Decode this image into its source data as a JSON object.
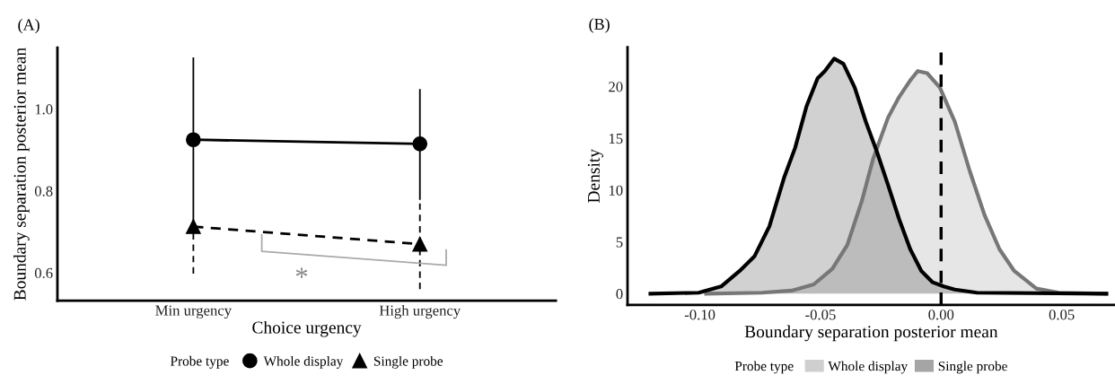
{
  "chart_data": [
    {
      "type": "line",
      "title": "(A)",
      "xlabel": "Choice urgency",
      "ylabel": "Boundary separation posterior mean",
      "categories": [
        "Min urgency",
        "High urgency"
      ],
      "series": [
        {
          "name": "Whole display",
          "color": "#000000",
          "values": [
            0.925,
            0.915
          ],
          "errors": [
            [
              0.717,
              1.124
            ],
            [
              0.78,
              1.047
            ]
          ],
          "marker": "circle",
          "line_style": "solid"
        },
        {
          "name": "Single probe",
          "color": "#000000",
          "values": [
            0.713,
            0.67
          ],
          "errors": [
            [
              0.598,
              0.717
            ],
            [
              0.56,
              0.78
            ]
          ],
          "marker": "triangle",
          "line_style": "dashed"
        }
      ],
      "ylim": [
        0.532,
        1.15
      ],
      "yticks": [
        {
          "value": 0.6,
          "label": "0.6"
        },
        {
          "value": 0.8,
          "label": "0.8"
        },
        {
          "value": 1.0,
          "label": "1.0"
        }
      ],
      "annotations": [
        "*"
      ],
      "legend": "bottom",
      "legend_title": "Probe type",
      "grid": false
    },
    {
      "type": "area",
      "title": "(B)",
      "xlabel": "Boundary separation posterior mean",
      "ylabel": "Density",
      "series": [
        {
          "name": "Whole display",
          "color": "#777777",
          "x": [
            -0.0974,
            -0.0743,
            -0.062,
            -0.0528,
            -0.0451,
            -0.0389,
            -0.0328,
            -0.0282,
            -0.022,
            -0.0174,
            -0.0128,
            -0.0097,
            -0.0058,
            -0.0005,
            0.0057,
            0.0118,
            0.018,
            0.0242,
            0.0303,
            0.0395,
            0.0488,
            0.0685
          ],
          "values": [
            0,
            0.1,
            0.3,
            0.9,
            2.4,
            4.7,
            9.0,
            13.0,
            17.0,
            19.0,
            20.6,
            21.5,
            21.3,
            19.9,
            16.6,
            11.9,
            7.6,
            4.3,
            2.2,
            0.5,
            0.1,
            0
          ]
        },
        {
          "name": "Single probe",
          "color": "#000000",
          "x": [
            -0.1205,
            -0.1005,
            -0.0912,
            -0.0835,
            -0.0774,
            -0.0712,
            -0.0651,
            -0.0605,
            -0.0558,
            -0.0512,
            -0.0482,
            -0.0443,
            -0.0405,
            -0.0358,
            -0.0312,
            -0.0266,
            -0.022,
            -0.0174,
            -0.0128,
            -0.0082,
            -0.0035,
            0.0011,
            0.0057,
            0.0149,
            0.0685
          ],
          "values": [
            0,
            0.1,
            0.7,
            2.2,
            3.6,
            6.5,
            11.2,
            14.1,
            18.1,
            20.8,
            21.5,
            22.7,
            22.2,
            19.9,
            16.6,
            13.7,
            10.5,
            7.2,
            4.3,
            2.2,
            1.1,
            0.7,
            0.4,
            0.1,
            0
          ]
        }
      ],
      "xlim": [
        -0.13,
        0.072
      ],
      "xticks": [
        {
          "value": -0.1,
          "label": "-0.10"
        },
        {
          "value": -0.05,
          "label": "-0.05"
        },
        {
          "value": 0.0,
          "label": "0.00"
        },
        {
          "value": 0.05,
          "label": "0.05"
        }
      ],
      "ylim": [
        -1.08,
        23.8
      ],
      "yticks": [
        0,
        5,
        10,
        15,
        20
      ],
      "ref_lines": [
        {
          "axis": "x",
          "value": 0,
          "color": "#000000",
          "line_style": "dashed"
        }
      ],
      "legend": "bottom",
      "legend_title": "Probe type",
      "grid": false
    }
  ]
}
